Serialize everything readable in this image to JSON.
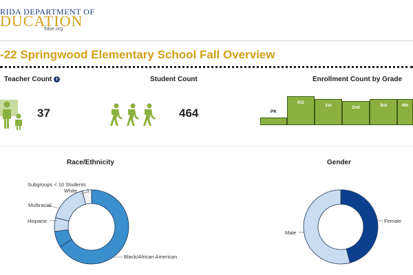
{
  "logo": {
    "line1": "RIDA DEPARTMENT OF",
    "line2": "DUCATION",
    "site": "fldoe.org"
  },
  "page_title": "-22 Springwood Elementary School Fall Overview",
  "teacher": {
    "label": "Teacher Count",
    "info_icon": "info-icon",
    "value": "37",
    "icon": "teacher-student-icon"
  },
  "student": {
    "label": "Student Count",
    "value": "464",
    "icon": "walking-students-icon"
  },
  "enrollment": {
    "label": "Enrollment Count by Grade",
    "grades": [
      "PK",
      "KG",
      "1st",
      "2nd",
      "3rd",
      "4th"
    ]
  },
  "race": {
    "title": "Race/Ethnicity",
    "labels": {
      "subgroups": "Subgroups < 10 Students",
      "white": "White",
      "multiracial": "Multiracial",
      "hispanic": "Hispanic",
      "black": "Black/African American"
    }
  },
  "gender": {
    "title": "Gender",
    "labels": {
      "male": "Male",
      "female": "Female"
    }
  },
  "colors": {
    "accent_gold": "#d4a017",
    "green": "#8ab13f",
    "blue_dark": "#0d3f8f",
    "blue_mid": "#3a8fcd",
    "blue_light": "#c9dcf0"
  },
  "chart_data": [
    {
      "type": "bar",
      "title": "Enrollment Count by Grade",
      "categories": [
        "PK",
        "KG",
        "1st",
        "2nd",
        "3rd",
        "4th"
      ],
      "values": [
        8,
        30,
        27,
        25,
        27,
        27
      ]
    },
    {
      "type": "pie",
      "title": "Race/Ethnicity",
      "categories": [
        "Black/African American",
        "Hispanic",
        "Multiracial",
        "White",
        "Subgroups < 10 Students"
      ],
      "values": [
        66,
        7,
        6,
        17,
        4
      ]
    },
    {
      "type": "pie",
      "title": "Gender",
      "categories": [
        "Female",
        "Male"
      ],
      "values": [
        46,
        54
      ]
    }
  ]
}
